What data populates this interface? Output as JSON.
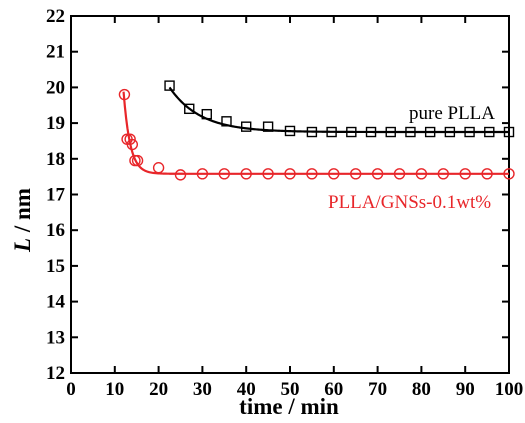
{
  "chart_data": {
    "type": "scatter",
    "xlabel": "time / min",
    "ylabel_italic": "L",
    "ylabel_rest": " / nm",
    "xlim": [
      0,
      100
    ],
    "ylim": [
      12,
      22
    ],
    "xticks": [
      0,
      10,
      20,
      30,
      40,
      50,
      60,
      70,
      80,
      90,
      100
    ],
    "yticks": [
      12,
      13,
      14,
      15,
      16,
      17,
      18,
      19,
      20,
      21,
      22
    ],
    "grid": false,
    "series": [
      {
        "name": "pure PLLA",
        "color": "#000000",
        "marker": "square",
        "points": [
          [
            22.5,
            20.05
          ],
          [
            27,
            19.4
          ],
          [
            31,
            19.25
          ],
          [
            35.5,
            19.05
          ],
          [
            40,
            18.9
          ],
          [
            45,
            18.9
          ],
          [
            50,
            18.78
          ],
          [
            55,
            18.75
          ],
          [
            59.5,
            18.75
          ],
          [
            64,
            18.75
          ],
          [
            68.5,
            18.75
          ],
          [
            73,
            18.75
          ],
          [
            77.5,
            18.75
          ],
          [
            82,
            18.75
          ],
          [
            86.5,
            18.75
          ],
          [
            91,
            18.75
          ],
          [
            95.5,
            18.75
          ],
          [
            100,
            18.75
          ]
        ],
        "fit": {
          "x0": 22.5,
          "x1": 100,
          "asymptote": 18.75,
          "amplitude": 1.25,
          "tau": 7
        }
      },
      {
        "name": "PLLA/GNSs-0.1wt%",
        "color": "#e8262a",
        "marker": "circle",
        "points": [
          [
            12.2,
            19.8
          ],
          [
            12.8,
            18.55
          ],
          [
            13.5,
            18.55
          ],
          [
            14,
            18.4
          ],
          [
            14.6,
            17.95
          ],
          [
            15.2,
            17.95
          ],
          [
            20,
            17.75
          ],
          [
            25,
            17.55
          ],
          [
            30,
            17.58
          ],
          [
            35,
            17.58
          ],
          [
            40,
            17.58
          ],
          [
            45,
            17.58
          ],
          [
            50,
            17.58
          ],
          [
            55,
            17.58
          ],
          [
            60,
            17.58
          ],
          [
            65,
            17.58
          ],
          [
            70,
            17.58
          ],
          [
            75,
            17.58
          ],
          [
            80,
            17.58
          ],
          [
            85,
            17.58
          ],
          [
            90,
            17.58
          ],
          [
            95,
            17.58
          ],
          [
            100,
            17.58
          ]
        ],
        "fit": {
          "x0": 12,
          "x1": 100,
          "asymptote": 17.58,
          "amplitude": 2.3,
          "tau": 1.5
        }
      }
    ]
  }
}
